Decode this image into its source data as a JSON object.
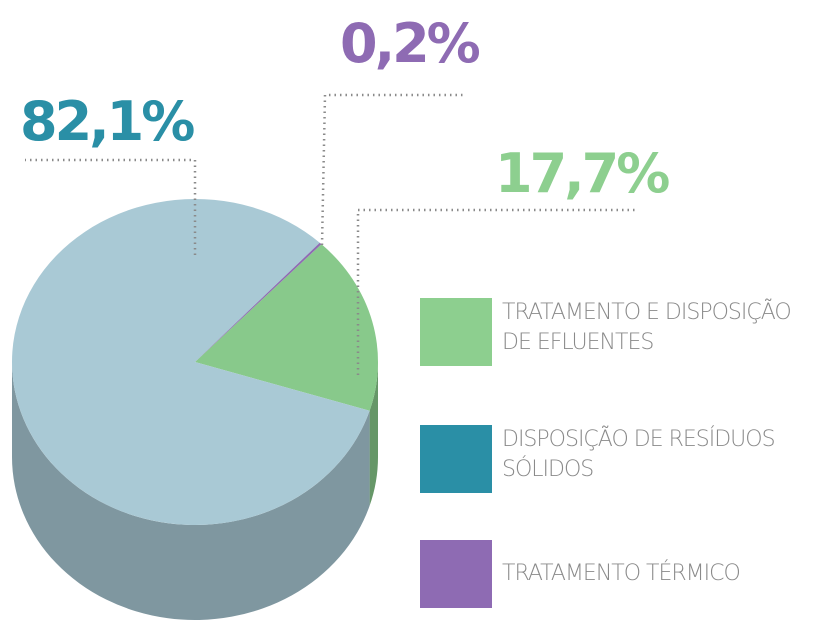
{
  "chart_data": {
    "type": "pie",
    "categories": [
      "TRATAMENTO E DISPOSIÇÃO DE EFLUENTES",
      "DISPOSIÇÃO DE RESÍDUOS SÓLIDOS",
      "TRATAMENTO TÉRMICO"
    ],
    "values": [
      17.7,
      82.1,
      0.2
    ],
    "value_labels": [
      "17,7%",
      "82,1%",
      "0,2%"
    ],
    "colors": [
      "#8dcf8f",
      "#2a8fa6",
      "#8e6bb3"
    ],
    "slice_colors": [
      "#88c98b",
      "#a9c9d5",
      "#8e6bb3"
    ]
  }
}
